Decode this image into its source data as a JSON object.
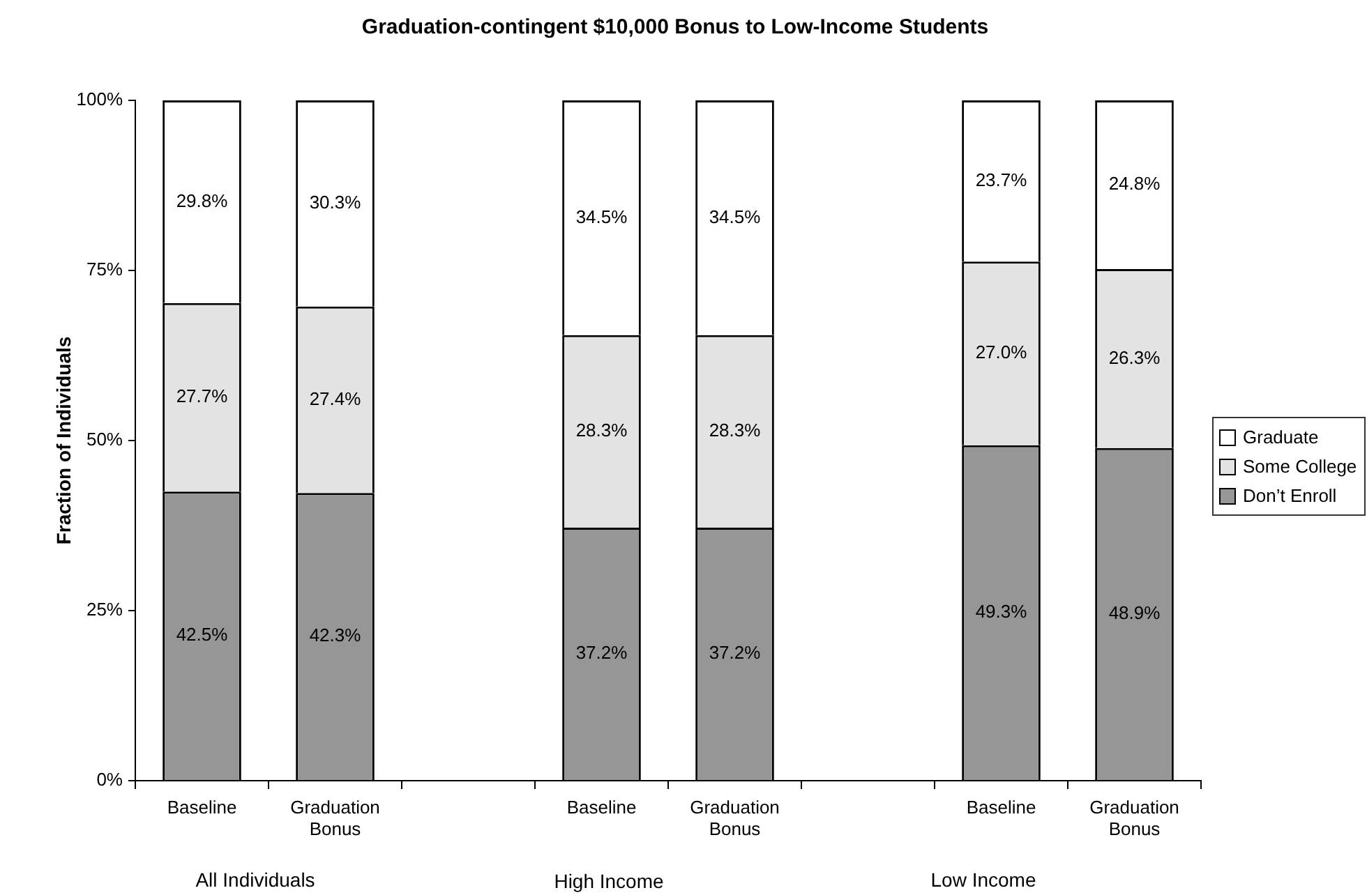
{
  "chart_data": {
    "type": "bar",
    "title": "Graduation-contingent $10,000 Bonus to Low-Income Students",
    "ylabel": "Fraction of Individuals",
    "categories": [
      "Baseline",
      "Graduation Bonus",
      null,
      "Baseline",
      "Graduation Bonus",
      null,
      "Baseline",
      "Graduation Bonus"
    ],
    "series": [
      {
        "name": "Don’t Enroll",
        "color": "#969696",
        "values": [
          42.5,
          42.3,
          null,
          37.2,
          37.2,
          null,
          49.3,
          48.9
        ],
        "value_labels": [
          "42.5%",
          "42.3%",
          null,
          "37.2%",
          "37.2%",
          null,
          "49.3%",
          "48.9%"
        ]
      },
      {
        "name": "Some College",
        "color": "#e3e3e3",
        "values": [
          27.7,
          27.4,
          null,
          28.3,
          28.3,
          null,
          27.0,
          26.3
        ],
        "value_labels": [
          "27.7%",
          "27.4%",
          null,
          "28.3%",
          "28.3%",
          null,
          "27.0%",
          "26.3%"
        ]
      },
      {
        "name": "Graduate",
        "color": "#ffffff",
        "values": [
          29.8,
          30.3,
          null,
          34.5,
          34.5,
          null,
          23.7,
          24.8
        ],
        "value_labels": [
          "29.8%",
          "30.3%",
          null,
          "34.5%",
          "34.5%",
          null,
          "23.7%",
          "24.8%"
        ]
      }
    ],
    "stacked": true,
    "ylim": [
      0,
      100
    ],
    "yticks": [
      {
        "value": 0,
        "label": "0%"
      },
      {
        "value": 25,
        "label": "25%"
      },
      {
        "value": 50,
        "label": "50%"
      },
      {
        "value": 75,
        "label": "75%"
      },
      {
        "value": 100,
        "label": "100%"
      }
    ],
    "grid": false,
    "legend": "right",
    "annotations": [
      "All Individuals",
      "High Income",
      "Low Income"
    ]
  }
}
